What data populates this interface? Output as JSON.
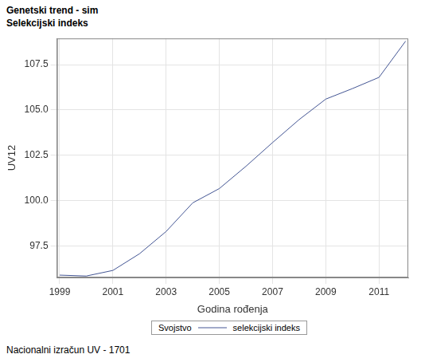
{
  "chart_data": {
    "type": "line",
    "title": "Genetski trend - sim",
    "subtitle": "Selekcijski indeks",
    "x_label": "Godina rođenja",
    "y_label": "UV12",
    "footnote": "Nacionalni izračun UV - 1701",
    "legend": "bottom",
    "legend_title": "Svojstvo",
    "x": [
      1999,
      2000,
      2001,
      2002,
      2003,
      2004,
      2005,
      2006,
      2007,
      2008,
      2009,
      2010,
      2011,
      2012
    ],
    "series": [
      {
        "name": "selekcijski indeks",
        "color": "#445694",
        "values": [
          95.88,
          95.83,
          96.14,
          97.06,
          98.29,
          99.87,
          100.66,
          101.89,
          103.2,
          104.47,
          105.6,
          106.18,
          106.8,
          108.8
        ]
      }
    ],
    "xlim": [
      1998.9,
      2012.1
    ],
    "xticks": [
      1999,
      2001,
      2003,
      2005,
      2007,
      2009,
      2011
    ],
    "ylim": [
      95.75,
      108.95
    ],
    "yticks": [
      97.5,
      {
        "value": 100,
        "label": "100.0"
      },
      102.5,
      {
        "value": 105,
        "label": "105.0"
      },
      107.5
    ],
    "grid": true
  }
}
